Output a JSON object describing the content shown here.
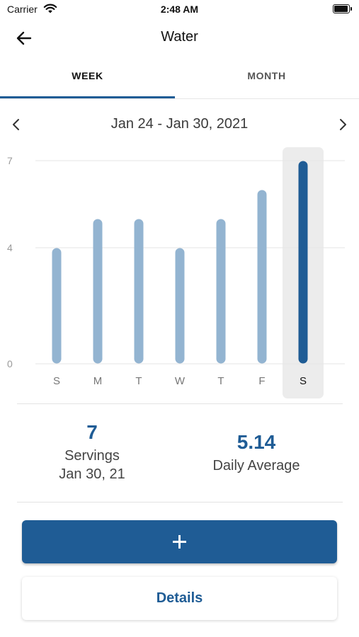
{
  "status_bar": {
    "carrier": "Carrier",
    "time": "2:48 AM",
    "wifi_icon": "wifi-icon",
    "battery_icon": "battery-icon"
  },
  "nav": {
    "title": "Water",
    "back_icon": "arrow-left-icon"
  },
  "tabs": [
    {
      "label": "WEEK",
      "selected": true
    },
    {
      "label": "MONTH",
      "selected": false
    }
  ],
  "date_range": {
    "label": "Jan 24 - Jan 30, 2021",
    "prev_icon": "chevron-left-icon",
    "next_icon": "chevron-right-icon"
  },
  "chart_data": {
    "type": "bar",
    "categories": [
      "S",
      "M",
      "T",
      "W",
      "T",
      "F",
      "S"
    ],
    "values": [
      4,
      5,
      5,
      4,
      5,
      6,
      7
    ],
    "selected_index": 6,
    "y_ticks": [
      "0",
      "4",
      "7"
    ],
    "ylim": [
      0,
      7
    ],
    "grid": true,
    "colors": {
      "bar": "#93b4d1",
      "bar_selected": "#1f5c95",
      "selection_bg": "#ececec"
    }
  },
  "stats": {
    "servings_value": "7",
    "servings_label": "Servings",
    "servings_date": "Jan 30, 21",
    "average_value": "5.14",
    "average_label": "Daily Average"
  },
  "actions": {
    "add_icon": "plus-icon",
    "details_label": "Details"
  },
  "colors": {
    "accent": "#1f5c95"
  }
}
